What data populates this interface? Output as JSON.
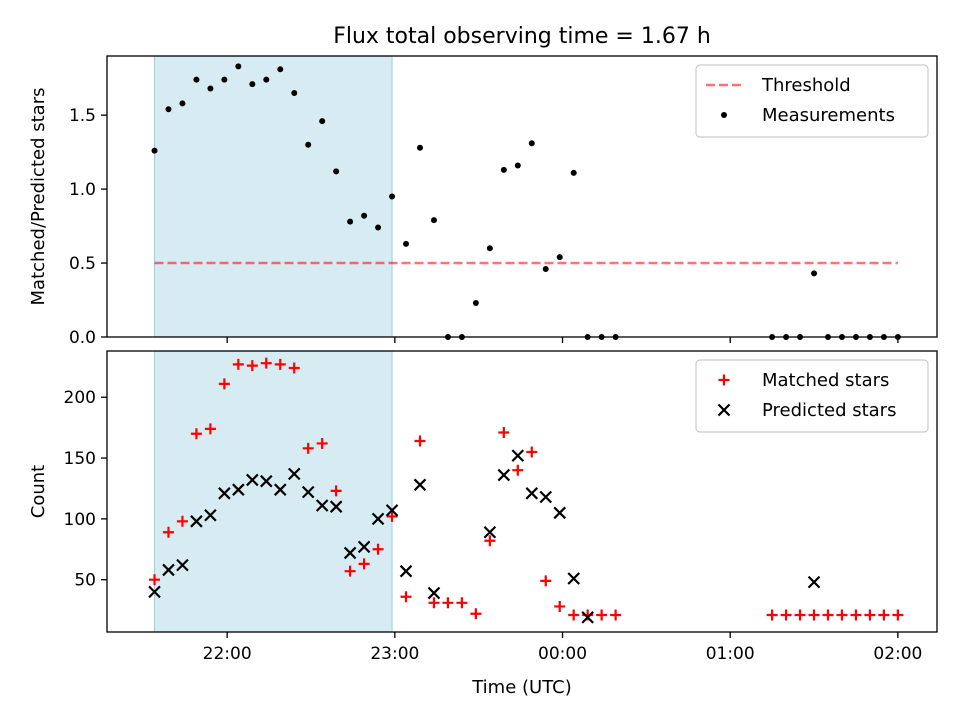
{
  "title": "Flux total observing time = 1.67 h",
  "chart_data": [
    {
      "type": "scatter",
      "ylabel": "Matched/Predicted stars",
      "ylim": [
        0,
        1.9
      ],
      "yticks": [
        "0.0",
        "0.5",
        "1.0",
        "1.5"
      ],
      "ytick_values": [
        0,
        0.5,
        1.0,
        1.5
      ],
      "xlim": [
        "21:17",
        "02:14"
      ],
      "xticks_unlabeled": [
        "22:00",
        "23:00",
        "00:00",
        "01:00",
        "02:00"
      ],
      "highlight_span": [
        "21:34",
        "22:59"
      ],
      "threshold": {
        "name": "Threshold",
        "y": 0.5,
        "x": [
          "21:34",
          "02:00"
        ]
      },
      "legend": {
        "position": "upper-right",
        "entries": [
          "Threshold",
          "Measurements"
        ]
      },
      "series": [
        {
          "name": "Measurements",
          "points": [
            [
              "21:34",
              1.26
            ],
            [
              "21:39",
              1.54
            ],
            [
              "21:44",
              1.58
            ],
            [
              "21:49",
              1.74
            ],
            [
              "21:54",
              1.68
            ],
            [
              "21:59",
              1.74
            ],
            [
              "22:04",
              1.83
            ],
            [
              "22:09",
              1.71
            ],
            [
              "22:14",
              1.74
            ],
            [
              "22:19",
              1.81
            ],
            [
              "22:24",
              1.65
            ],
            [
              "22:29",
              1.3
            ],
            [
              "22:34",
              1.46
            ],
            [
              "22:39",
              1.12
            ],
            [
              "22:44",
              0.78
            ],
            [
              "22:49",
              0.82
            ],
            [
              "22:54",
              0.74
            ],
            [
              "22:59",
              0.95
            ],
            [
              "23:04",
              0.63
            ],
            [
              "23:09",
              1.28
            ],
            [
              "23:14",
              0.79
            ],
            [
              "23:19",
              0.0
            ],
            [
              "23:24",
              0.0
            ],
            [
              "23:29",
              0.23
            ],
            [
              "23:34",
              0.6
            ],
            [
              "23:39",
              1.13
            ],
            [
              "23:44",
              1.16
            ],
            [
              "23:49",
              1.31
            ],
            [
              "23:54",
              0.46
            ],
            [
              "23:59",
              0.54
            ],
            [
              "00:04",
              1.11
            ],
            [
              "00:09",
              0.0
            ],
            [
              "00:14",
              0.0
            ],
            [
              "00:19",
              0.0
            ],
            [
              "01:15",
              0.0
            ],
            [
              "01:20",
              0.0
            ],
            [
              "01:25",
              0.0
            ],
            [
              "01:30",
              0.43
            ],
            [
              "01:35",
              0.0
            ],
            [
              "01:40",
              0.0
            ],
            [
              "01:45",
              0.0
            ],
            [
              "01:50",
              0.0
            ],
            [
              "01:55",
              0.0
            ],
            [
              "02:00",
              0.0
            ]
          ]
        }
      ]
    },
    {
      "type": "scatter",
      "ylabel": "Count",
      "xlabel": "Time (UTC)",
      "ylim": [
        7,
        238
      ],
      "yticks": [
        "50",
        "100",
        "150",
        "200"
      ],
      "ytick_values": [
        50,
        100,
        150,
        200
      ],
      "xlim": [
        "21:17",
        "02:14"
      ],
      "xticks": [
        "22:00",
        "23:00",
        "00:00",
        "01:00",
        "02:00"
      ],
      "highlight_span": [
        "21:34",
        "22:59"
      ],
      "legend": {
        "position": "upper-right",
        "entries": [
          "Matched stars",
          "Predicted stars"
        ]
      },
      "series": [
        {
          "name": "Matched stars",
          "marker": "plus",
          "color": "#ff0000",
          "points": [
            [
              "21:34",
              50
            ],
            [
              "21:39",
              89
            ],
            [
              "21:44",
              98
            ],
            [
              "21:49",
              170
            ],
            [
              "21:54",
              174
            ],
            [
              "21:59",
              211
            ],
            [
              "22:04",
              227
            ],
            [
              "22:09",
              226
            ],
            [
              "22:14",
              228
            ],
            [
              "22:19",
              227
            ],
            [
              "22:24",
              224
            ],
            [
              "22:29",
              158
            ],
            [
              "22:34",
              162
            ],
            [
              "22:39",
              123
            ],
            [
              "22:44",
              57
            ],
            [
              "22:49",
              63
            ],
            [
              "22:54",
              75
            ],
            [
              "22:59",
              102
            ],
            [
              "23:04",
              36
            ],
            [
              "23:09",
              164
            ],
            [
              "23:14",
              31
            ],
            [
              "23:19",
              31
            ],
            [
              "23:24",
              31
            ],
            [
              "23:29",
              22
            ],
            [
              "23:34",
              82
            ],
            [
              "23:39",
              171
            ],
            [
              "23:44",
              140
            ],
            [
              "23:49",
              155
            ],
            [
              "23:54",
              49
            ],
            [
              "23:59",
              28
            ],
            [
              "00:04",
              21
            ],
            [
              "00:09",
              21
            ],
            [
              "00:14",
              21
            ],
            [
              "00:19",
              21
            ],
            [
              "01:15",
              21
            ],
            [
              "01:20",
              21
            ],
            [
              "01:25",
              21
            ],
            [
              "01:30",
              21
            ],
            [
              "01:35",
              21
            ],
            [
              "01:40",
              21
            ],
            [
              "01:45",
              21
            ],
            [
              "01:50",
              21
            ],
            [
              "01:55",
              21
            ],
            [
              "02:00",
              21
            ]
          ]
        },
        {
          "name": "Predicted stars",
          "marker": "x",
          "color": "#000000",
          "points": [
            [
              "21:34",
              40
            ],
            [
              "21:39",
              58
            ],
            [
              "21:44",
              62
            ],
            [
              "21:49",
              98
            ],
            [
              "21:54",
              103
            ],
            [
              "21:59",
              121
            ],
            [
              "22:04",
              124
            ],
            [
              "22:09",
              132
            ],
            [
              "22:14",
              131
            ],
            [
              "22:19",
              124
            ],
            [
              "22:24",
              137
            ],
            [
              "22:29",
              122
            ],
            [
              "22:34",
              111
            ],
            [
              "22:39",
              110
            ],
            [
              "22:44",
              72
            ],
            [
              "22:49",
              77
            ],
            [
              "22:54",
              100
            ],
            [
              "22:59",
              107
            ],
            [
              "23:04",
              57
            ],
            [
              "23:09",
              128
            ],
            [
              "23:14",
              39
            ],
            [
              "23:34",
              89
            ],
            [
              "23:39",
              136
            ],
            [
              "23:44",
              152
            ],
            [
              "23:49",
              121
            ],
            [
              "23:54",
              118
            ],
            [
              "23:59",
              105
            ],
            [
              "00:04",
              51
            ],
            [
              "00:09",
              19
            ],
            [
              "01:30",
              48
            ]
          ]
        }
      ]
    }
  ]
}
